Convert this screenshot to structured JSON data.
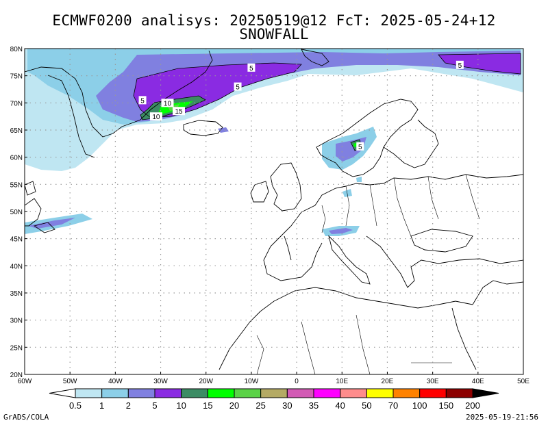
{
  "title": "ECMWF0200 analisys: 20250519@12 FcT: 2025-05-24+12",
  "subtitle": "SNOWFALL",
  "lat_labels": [
    "80N",
    "75N",
    "70N",
    "65N",
    "60N",
    "55N",
    "50N",
    "45N",
    "40N",
    "35N",
    "30N",
    "25N",
    "20N"
  ],
  "lon_labels": [
    "60W",
    "50W",
    "40W",
    "30W",
    "20W",
    "10W",
    "0",
    "10E",
    "20E",
    "30E",
    "40E",
    "50E"
  ],
  "colorbar": {
    "labels": [
      "0.5",
      "1",
      "2",
      "5",
      "10",
      "15",
      "20",
      "25",
      "30",
      "35",
      "40",
      "50",
      "70",
      "100",
      "150",
      "200"
    ],
    "colors": [
      "#bfe6f2",
      "#8ccfe8",
      "#8080e0",
      "#8a2be2",
      "#3c8c64",
      "#00ff00",
      "#5ad246",
      "#b4aa64",
      "#d25ab4",
      "#ff00ff",
      "#ff8c8c",
      "#ffff00",
      "#ff8200",
      "#ff0000",
      "#8c0000",
      "#000000"
    ]
  },
  "contour_labels": [
    {
      "text": "5",
      "lon": -10,
      "lat": 76.5
    },
    {
      "text": "5",
      "lon": -13,
      "lat": 73
    },
    {
      "text": "5",
      "lon": -34,
      "lat": 70.5
    },
    {
      "text": "10",
      "lon": -28.5,
      "lat": 70
    },
    {
      "text": "15",
      "lon": -26,
      "lat": 68.5
    },
    {
      "text": "10",
      "lon": -31,
      "lat": 67.5
    },
    {
      "text": "5",
      "lon": 36,
      "lat": 77
    },
    {
      "text": "5",
      "lon": 14,
      "lat": 62
    }
  ],
  "footer": {
    "left": "GrADS/COLA",
    "right": "2025-05-19-21:56"
  }
}
